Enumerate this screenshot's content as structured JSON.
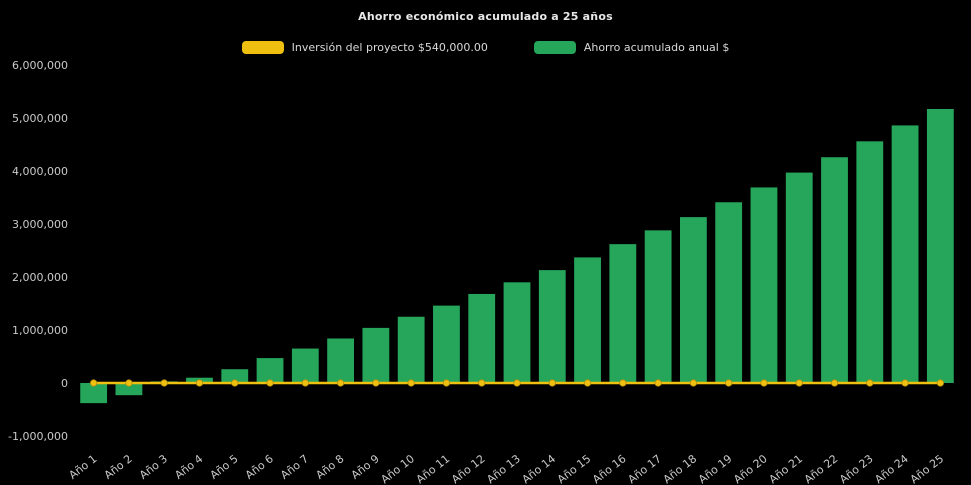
{
  "title": "Ahorro económico acumulado a 25 años",
  "legend": [
    {
      "label": "Inversión del proyecto $540,000.00",
      "color": "#f0c011"
    },
    {
      "label": "Ahorro acumulado anual $",
      "color": "#26a65b"
    }
  ],
  "chart_data": {
    "type": "bar",
    "title": "Ahorro económico acumulado a 25 años",
    "xlabel": "",
    "ylabel": "",
    "categories": [
      "Año 1",
      "Año 2",
      "Año 3",
      "Año 4",
      "Año 5",
      "Año 6",
      "Año 7",
      "Año 8",
      "Año 9",
      "Año 10",
      "Año 11",
      "Año 12",
      "Año 13",
      "Año 14",
      "Año 15",
      "Año 16",
      "Año 17",
      "Año 18",
      "Año 19",
      "Año 20",
      "Año 21",
      "Año 22",
      "Año 23",
      "Año 24",
      "Año 25"
    ],
    "series": [
      {
        "name": "Inversión del proyecto $540,000.00",
        "type": "line",
        "color": "#f0c011",
        "marker_color": "#f0c011",
        "values": [
          0,
          0,
          0,
          0,
          0,
          0,
          0,
          0,
          0,
          0,
          0,
          0,
          0,
          0,
          0,
          0,
          0,
          0,
          0,
          0,
          0,
          0,
          0,
          0,
          0
        ]
      },
      {
        "name": "Ahorro acumulado anual $",
        "type": "bar",
        "color": "#26a65b",
        "values": [
          -380000,
          -230000,
          30000,
          100000,
          260000,
          470000,
          650000,
          840000,
          1040000,
          1250000,
          1460000,
          1680000,
          1900000,
          2130000,
          2370000,
          2620000,
          2880000,
          3130000,
          3410000,
          3690000,
          3970000,
          4260000,
          4560000,
          4860000,
          5170000
        ]
      }
    ],
    "ylim": [
      -1000000,
      6000000
    ],
    "ytick_step": 1000000,
    "grid": false,
    "legend_position": "top",
    "background": "#000000",
    "text_color": "#c9c9c9"
  }
}
